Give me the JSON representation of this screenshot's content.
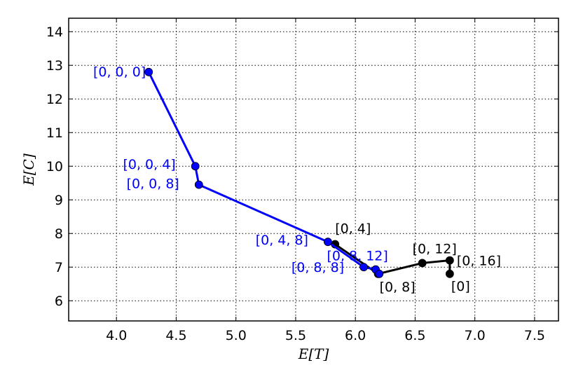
{
  "chart_data": {
    "type": "line",
    "title": "",
    "xlabel": "E[T]",
    "ylabel": "E[C]",
    "xlim": [
      3.6,
      7.7
    ],
    "ylim": [
      5.4,
      14.4
    ],
    "xticks": [
      "4.0",
      "4.5",
      "5.0",
      "5.5",
      "6.0",
      "6.5",
      "7.0",
      "7.5"
    ],
    "yticks": [
      "6",
      "7",
      "8",
      "9",
      "10",
      "11",
      "12",
      "13",
      "14"
    ],
    "xtick_values": [
      4.0,
      4.5,
      5.0,
      5.5,
      6.0,
      6.5,
      7.0,
      7.5
    ],
    "ytick_values": [
      6,
      7,
      8,
      9,
      10,
      11,
      12,
      13,
      14
    ],
    "grid": true,
    "series": [
      {
        "color": "#0000ff",
        "points": [
          {
            "x": 4.27,
            "y": 12.8,
            "label": "[0, 0, 0]"
          },
          {
            "x": 4.66,
            "y": 10.0,
            "label": "[0, 0, 4]"
          },
          {
            "x": 4.69,
            "y": 9.45,
            "label": "[0, 0, 8]"
          },
          {
            "x": 5.77,
            "y": 7.75,
            "label": "[0, 4, 8]"
          },
          {
            "x": 6.07,
            "y": 7.0,
            "label": "[0, 8, 8]"
          },
          {
            "x": 6.17,
            "y": 6.93,
            "label": "[0, 8, 12]"
          },
          {
            "x": 6.2,
            "y": 6.8,
            "label": ""
          }
        ]
      },
      {
        "color": "#000000",
        "points": [
          {
            "x": 5.83,
            "y": 7.68,
            "label": "[0, 4]"
          },
          {
            "x": 6.19,
            "y": 6.8,
            "label": "[0, 8]"
          },
          {
            "x": 6.56,
            "y": 7.12,
            "label": "[0, 12]"
          },
          {
            "x": 6.79,
            "y": 7.2,
            "label": "[0, 16]"
          },
          {
            "x": 6.79,
            "y": 6.8,
            "label": "[0]"
          }
        ]
      }
    ]
  }
}
